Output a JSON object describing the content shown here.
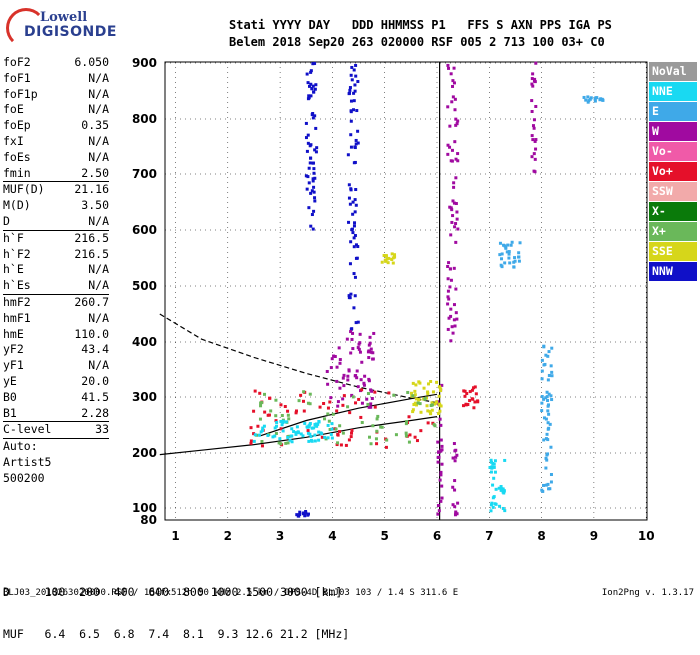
{
  "logo": {
    "line1": "Lowell",
    "line2": "DIGISONDE"
  },
  "header": {
    "line1": "Stati YYYY DAY   DDD HHMMSS P1   FFS S AXN PPS IGA PS",
    "line2": "Belem 2018 Sep20 263 020000 RSF 005 2 713 100 03+ C0"
  },
  "params": [
    {
      "k": "foF2",
      "v": "6.050"
    },
    {
      "k": "foF1",
      "v": "N/A"
    },
    {
      "k": "foF1p",
      "v": "N/A"
    },
    {
      "k": "foE",
      "v": "N/A"
    },
    {
      "k": "foEp",
      "v": "0.35"
    },
    {
      "k": "fxI",
      "v": "N/A"
    },
    {
      "k": "foEs",
      "v": "N/A"
    },
    {
      "k": "fmin",
      "v": "2.50"
    },
    {
      "k": "---"
    },
    {
      "k": "MUF(D)",
      "v": "21.16"
    },
    {
      "k": "M(D)",
      "v": "3.50"
    },
    {
      "k": "D",
      "v": "N/A"
    },
    {
      "k": "---"
    },
    {
      "k": "h`F",
      "v": "216.5"
    },
    {
      "k": "h`F2",
      "v": "216.5"
    },
    {
      "k": "h`E",
      "v": "N/A"
    },
    {
      "k": "h`Es",
      "v": "N/A"
    },
    {
      "k": "---"
    },
    {
      "k": "hmF2",
      "v": "260.7"
    },
    {
      "k": "hmF1",
      "v": "N/A"
    },
    {
      "k": "hmE",
      "v": "110.0"
    },
    {
      "k": "yF2",
      "v": "43.4"
    },
    {
      "k": "yF1",
      "v": "N/A"
    },
    {
      "k": "yE",
      "v": "20.0"
    },
    {
      "k": "B0",
      "v": "41.5"
    },
    {
      "k": "B1",
      "v": "2.28"
    },
    {
      "k": "---"
    },
    {
      "k": "C-level",
      "v": "33"
    },
    {
      "k": "---"
    }
  ],
  "notes": [
    "Auto:",
    "Artist5",
    "500200"
  ],
  "legend": [
    {
      "label": "NoVal",
      "color": "#9a9a9a"
    },
    {
      "label": "NNE",
      "color": "#19d9f2"
    },
    {
      "label": "E",
      "color": "#3fa9e8"
    },
    {
      "label": "W",
      "color": "#a00aa0"
    },
    {
      "label": "Vo-",
      "color": "#f05aa8"
    },
    {
      "label": "Vo+",
      "color": "#e5102a"
    },
    {
      "label": "SSW",
      "color": "#f2aaaa"
    },
    {
      "label": "X-",
      "color": "#0a7a0a"
    },
    {
      "label": "X+",
      "color": "#6ab85a"
    },
    {
      "label": "SSE",
      "color": "#d6d61a"
    },
    {
      "label": "NNW",
      "color": "#1010c8"
    }
  ],
  "bottom_table": {
    "row1": "D     100  200  400  600  800 1000 1500 3000 [km]",
    "row2": "MUF   6.4  6.5  6.8  7.4  8.1  9.3 12.6 21.2 [MHz]"
  },
  "footer": {
    "left": "BLJ03_2018263020000.RSF / 184fx512h 50 kHz 2.5 km / DPS-4D BLJ03 103 / 1.4 S 311.6 E",
    "right": "Ion2Png v. 1.3.17"
  },
  "chart_data": {
    "type": "scatter",
    "title": "",
    "xlabel": "",
    "ylabel": "",
    "xlim": [
      0.7,
      10
    ],
    "ylim": [
      80,
      900
    ],
    "xticks": [
      "1",
      "2",
      "3",
      "4",
      "5",
      "6",
      "7",
      "8",
      "9",
      "10"
    ],
    "yticks": [
      "80",
      "100",
      "200",
      "300",
      "400",
      "500",
      "600",
      "700",
      "800",
      "900"
    ],
    "y_scale": "nonlinear",
    "ygrid_levels": [
      100,
      200,
      300,
      400,
      500,
      600,
      700,
      800,
      900
    ],
    "vertical_lines": [
      {
        "name": "foF2",
        "x": 6.05,
        "style": "solid"
      }
    ],
    "profile_curves": [
      {
        "name": "virtual-height-solid",
        "style": "solid",
        "points": [
          [
            0.7,
            197
          ],
          [
            1.5,
            205
          ],
          [
            2.5,
            215
          ],
          [
            3.5,
            228
          ],
          [
            4.5,
            245
          ],
          [
            5.5,
            258
          ],
          [
            6.0,
            265
          ]
        ]
      },
      {
        "name": "virtual-height-dashed",
        "style": "dashed",
        "points": [
          [
            0.7,
            450
          ],
          [
            1.5,
            405
          ],
          [
            2.5,
            372
          ],
          [
            3.5,
            343
          ],
          [
            4.5,
            318
          ],
          [
            5.5,
            298
          ],
          [
            6.0,
            290
          ]
        ]
      },
      {
        "name": "red-trace-curve",
        "style": "solid",
        "points": [
          [
            2.6,
            230
          ],
          [
            3.5,
            258
          ],
          [
            4.5,
            280
          ],
          [
            5.5,
            297
          ],
          [
            6.0,
            305
          ]
        ]
      }
    ],
    "series": [
      {
        "name": "NNW",
        "clusters": [
          {
            "x": [
              3.5,
              3.7
            ],
            "y": [
              600,
              900
            ]
          },
          {
            "x": [
              4.3,
              4.5
            ],
            "y": [
              420,
              900
            ]
          },
          {
            "x": [
              3.3,
              3.6
            ],
            "y": [
              86,
              95
            ]
          }
        ]
      },
      {
        "name": "W",
        "clusters": [
          {
            "x": [
              6.2,
              6.4
            ],
            "y": [
              400,
              900
            ]
          },
          {
            "x": [
              6.0,
              6.1
            ],
            "y": [
              88,
              330
            ]
          },
          {
            "x": [
              6.3,
              6.4
            ],
            "y": [
              88,
              220
            ]
          },
          {
            "x": [
              7.8,
              7.9
            ],
            "y": [
              700,
              900
            ]
          },
          {
            "x": [
              3.9,
              4.8
            ],
            "y": [
              280,
              420
            ]
          }
        ]
      },
      {
        "name": "Vo+",
        "clusters": [
          {
            "x": [
              2.4,
              6.0
            ],
            "y": [
              210,
              320
            ]
          },
          {
            "x": [
              6.5,
              6.8
            ],
            "y": [
              280,
              320
            ]
          }
        ]
      },
      {
        "name": "E",
        "clusters": [
          {
            "x": [
              8.0,
              8.2
            ],
            "y": [
              120,
              400
            ]
          },
          {
            "x": [
              8.8,
              9.2
            ],
            "y": [
              830,
              840
            ]
          },
          {
            "x": [
              7.2,
              7.6
            ],
            "y": [
              530,
              580
            ]
          }
        ]
      },
      {
        "name": "SSE",
        "clusters": [
          {
            "x": [
              4.9,
              5.2
            ],
            "y": [
              540,
              560
            ]
          },
          {
            "x": [
              5.5,
              6.1
            ],
            "y": [
              270,
              330
            ]
          }
        ]
      },
      {
        "name": "X+",
        "clusters": [
          {
            "x": [
              2.5,
              6.0
            ],
            "y": [
              215,
              310
            ]
          }
        ]
      },
      {
        "name": "NNE",
        "clusters": [
          {
            "x": [
              2.5,
              4.0
            ],
            "y": [
              220,
              260
            ]
          },
          {
            "x": [
              7.0,
              7.3
            ],
            "y": [
              95,
              200
            ]
          }
        ]
      }
    ]
  }
}
